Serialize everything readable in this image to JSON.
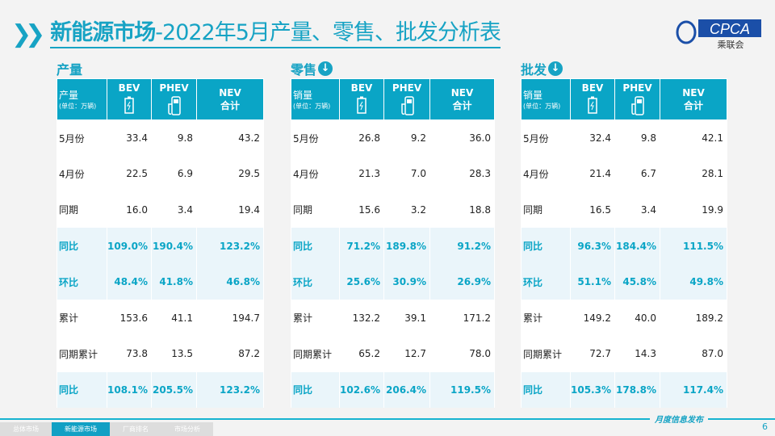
{
  "title": {
    "bold": "新能源市场",
    "rest": "-2022年5月产量、零售、批发分析表"
  },
  "logo": {
    "text": "CPCA",
    "sub": "乘联会"
  },
  "tables": [
    {
      "label": "产量",
      "has_download": false,
      "corner": "产量",
      "unit": "(单位：万辆)",
      "cols": [
        "BEV",
        "PHEV",
        "NEV",
        "合计"
      ],
      "rows": [
        [
          "5月份",
          "33.4",
          "9.8",
          "43.2"
        ],
        [
          "4月份",
          "22.5",
          "6.9",
          "29.5"
        ],
        [
          "同期",
          "16.0",
          "3.4",
          "19.4"
        ],
        [
          "同比",
          "109.0%",
          "190.4%",
          "123.2%"
        ],
        [
          "环比",
          "48.4%",
          "41.8%",
          "46.8%"
        ],
        [
          "累计",
          "153.6",
          "41.1",
          "194.7"
        ],
        [
          "同期累计",
          "73.8",
          "13.5",
          "87.2"
        ],
        [
          "同比",
          "108.1%",
          "205.5%",
          "123.2%"
        ]
      ]
    },
    {
      "label": "零售",
      "has_download": true,
      "corner": "销量",
      "unit": "(单位：万辆)",
      "cols": [
        "BEV",
        "PHEV",
        "NEV",
        "合计"
      ],
      "rows": [
        [
          "5月份",
          "26.8",
          "9.2",
          "36.0"
        ],
        [
          "4月份",
          "21.3",
          "7.0",
          "28.3"
        ],
        [
          "同期",
          "15.6",
          "3.2",
          "18.8"
        ],
        [
          "同比",
          "71.2%",
          "189.8%",
          "91.2%"
        ],
        [
          "环比",
          "25.6%",
          "30.9%",
          "26.9%"
        ],
        [
          "累计",
          "132.2",
          "39.1",
          "171.2"
        ],
        [
          "同期累计",
          "65.2",
          "12.7",
          "78.0"
        ],
        [
          "同比",
          "102.6%",
          "206.4%",
          "119.5%"
        ]
      ]
    },
    {
      "label": "批发",
      "has_download": true,
      "corner": "销量",
      "unit": "(单位：万辆)",
      "cols": [
        "BEV",
        "PHEV",
        "NEV",
        "合计"
      ],
      "rows": [
        [
          "5月份",
          "32.4",
          "9.8",
          "42.1"
        ],
        [
          "4月份",
          "21.4",
          "6.7",
          "28.1"
        ],
        [
          "同期",
          "16.5",
          "3.4",
          "19.9"
        ],
        [
          "同比",
          "96.3%",
          "184.4%",
          "111.5%"
        ],
        [
          "环比",
          "51.1%",
          "45.8%",
          "49.8%"
        ],
        [
          "累计",
          "149.2",
          "40.0",
          "189.2"
        ],
        [
          "同期累计",
          "72.7",
          "14.3",
          "87.0"
        ],
        [
          "同比",
          "105.3%",
          "178.8%",
          "117.4%"
        ]
      ]
    }
  ],
  "footer": {
    "tabs": [
      "总体市场",
      "新能源市场",
      "厂商排名",
      "市场分析"
    ],
    "active_tab": 1,
    "text": "月度信息发布",
    "page": "6"
  },
  "colors": {
    "accent": "#17a3c4",
    "header": "#0aa5c6"
  }
}
